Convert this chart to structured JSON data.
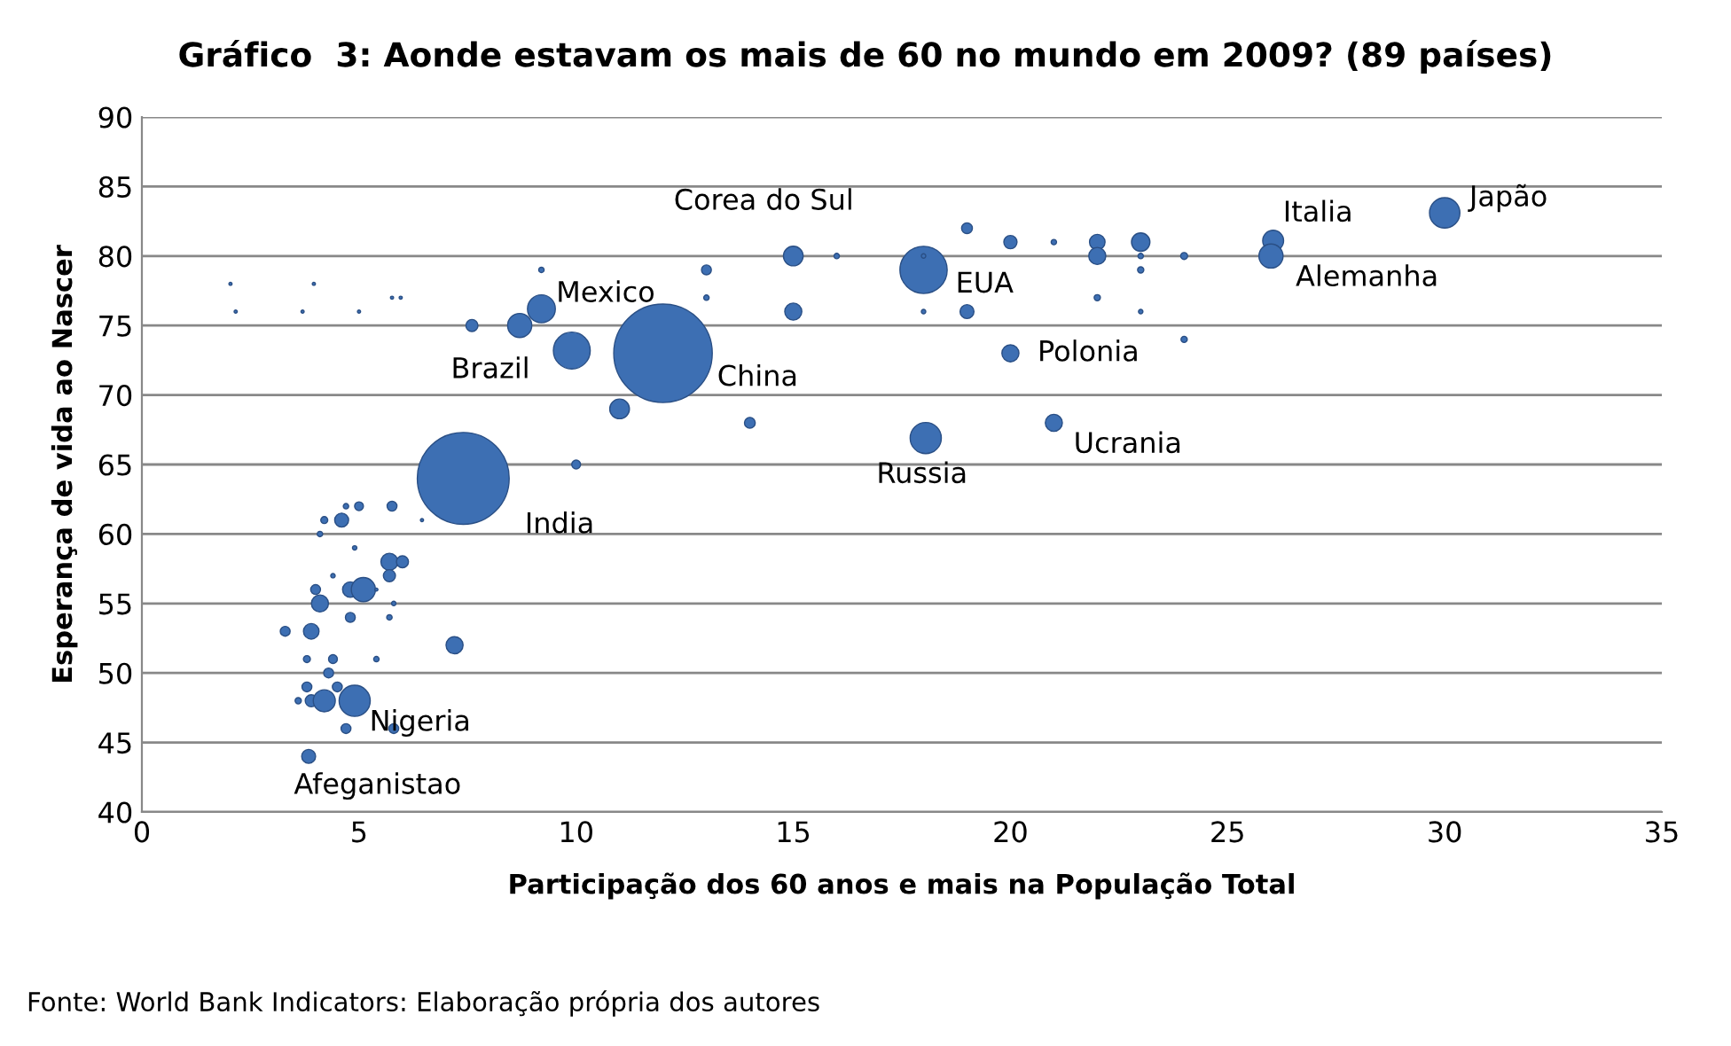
{
  "chart_data": {
    "type": "bubble",
    "title": "Gráfico  3: Aonde estavam os mais de 60 no mundo em 2009? (89 países)",
    "xlabel": "Participação dos 60 anos e mais na População Total",
    "ylabel": "Esperança de vida ao Nascer",
    "xlim": [
      0,
      35
    ],
    "xticks": [
      0,
      5,
      10,
      15,
      20,
      25,
      30,
      35
    ],
    "ylim": [
      40,
      90
    ],
    "yticks": [
      40,
      45,
      50,
      55,
      60,
      65,
      70,
      75,
      80,
      85,
      90
    ],
    "grid": "y",
    "legend": false,
    "series": [
      {
        "color": "#3d6fb3",
        "x": [
          12.0,
          7.4,
          9.9,
          9.2,
          8.7,
          18.0,
          30.0,
          26.05,
          26.0,
          18.05,
          21.0,
          20.0,
          15.0,
          4.9,
          3.84,
          2.04,
          3.96,
          2.16,
          3.7,
          5.0,
          5.76,
          5.96,
          7.6,
          9.2,
          13.0,
          13.0,
          15.0,
          11.0,
          14.0,
          10.0,
          16.0,
          18.0,
          19.0,
          20.0,
          21.0,
          22.0,
          22.0,
          23.0,
          23.0,
          23.0,
          24.0,
          18.0,
          19.0,
          22.0,
          23.0,
          24.0,
          4.7,
          5.0,
          5.76,
          6.45,
          4.2,
          4.6,
          4.1,
          4.9,
          5.7,
          6.0,
          5.7,
          4.4,
          4.8,
          5.1,
          4.0,
          5.4,
          4.1,
          5.8,
          4.8,
          5.7,
          3.3,
          3.9,
          7.2,
          3.8,
          4.4,
          5.4,
          4.3,
          3.8,
          4.5,
          3.6,
          3.9,
          4.2,
          5.8,
          4.7
        ],
        "values": [
          73,
          64,
          73.2,
          76.2,
          75,
          79,
          83.1,
          81.1,
          80,
          66.9,
          68,
          73,
          80,
          48,
          44,
          78,
          78,
          76,
          76,
          76,
          77,
          77,
          75,
          79,
          79,
          77,
          76,
          69,
          68,
          65,
          80,
          80,
          82,
          81,
          81,
          81,
          80,
          81,
          80,
          79,
          80,
          76,
          76,
          77,
          76,
          74,
          62,
          62,
          62,
          61,
          61,
          61,
          60,
          59,
          58,
          58,
          57,
          57,
          56,
          56,
          56,
          56,
          55,
          55,
          54,
          54,
          53,
          53,
          52,
          51,
          51,
          51,
          50,
          49,
          49,
          48,
          48,
          48,
          46,
          46
        ],
        "sizes": [
          1,
          0.87,
          0.14,
          0.08,
          0.06,
          0.23,
          0.095,
          0.045,
          0.06,
          0.1,
          0.03,
          0.03,
          0.04,
          0.1,
          0.02,
          0.001,
          0.001,
          0.001,
          0.001,
          0.001,
          0.001,
          0.001,
          0.015,
          0.003,
          0.01,
          0.003,
          0.03,
          0.04,
          0.012,
          0.008,
          0.003,
          0.002,
          0.012,
          0.018,
          0.003,
          0.025,
          0.03,
          0.035,
          0.003,
          0.004,
          0.005,
          0.002,
          0.02,
          0.004,
          0.002,
          0.004,
          0.003,
          0.008,
          0.01,
          0.001,
          0.005,
          0.02,
          0.003,
          0.002,
          0.03,
          0.015,
          0.015,
          0.002,
          0.025,
          0.06,
          0.01,
          0.001,
          0.03,
          0.002,
          0.01,
          0.003,
          0.01,
          0.025,
          0.03,
          0.005,
          0.008,
          0.003,
          0.01,
          0.01,
          0.01,
          0.004,
          0.015,
          0.05,
          0.01,
          0.01
        ]
      }
    ],
    "annotations": [
      {
        "text": "Corea do Sul",
        "x": 15.0,
        "y": 80
      },
      {
        "text": "Mexico",
        "x": 9.2,
        "y": 76.2
      },
      {
        "text": "Brazil",
        "x": 9.9,
        "y": 73.2
      },
      {
        "text": "China",
        "x": 12.0,
        "y": 73
      },
      {
        "text": "India",
        "x": 7.4,
        "y": 64
      },
      {
        "text": "EUA",
        "x": 18.0,
        "y": 79
      },
      {
        "text": "Russia",
        "x": 18.05,
        "y": 66.9
      },
      {
        "text": "Polonia",
        "x": 20.0,
        "y": 73
      },
      {
        "text": "Ucrania",
        "x": 21.0,
        "y": 68
      },
      {
        "text": "Italia",
        "x": 26.05,
        "y": 81.1
      },
      {
        "text": "Alemanha",
        "x": 26.0,
        "y": 80
      },
      {
        "text": "Japão",
        "x": 30.0,
        "y": 83.1
      },
      {
        "text": "Nigeria",
        "x": 4.9,
        "y": 48
      },
      {
        "text": "Afeganistao",
        "x": 3.84,
        "y": 44
      },
      "Fonte: World Bank Indicators: Elaboração própria dos autores"
    ]
  }
}
